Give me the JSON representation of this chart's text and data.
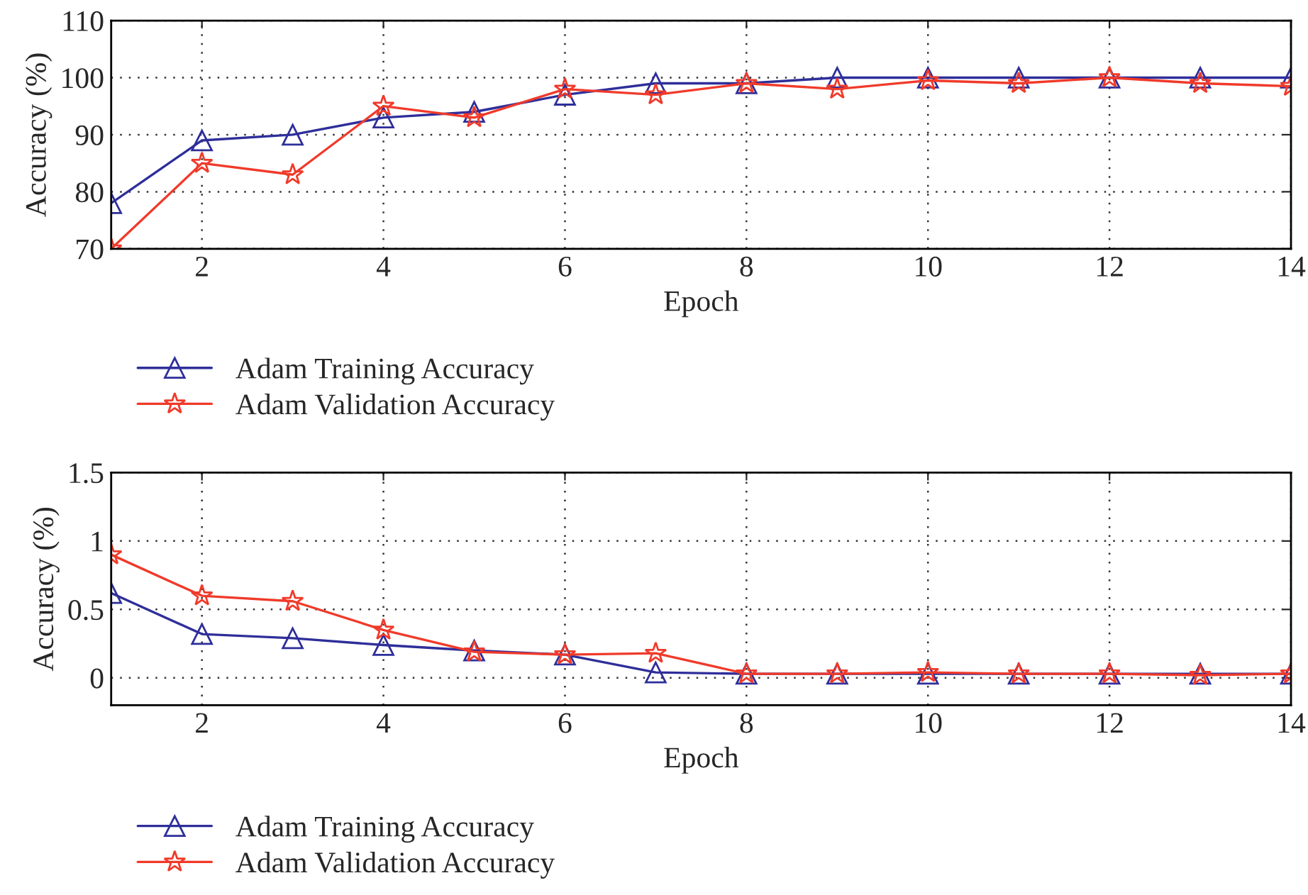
{
  "chart_data": [
    {
      "type": "line",
      "xlabel": "Epoch",
      "ylabel": "Accuracy (%)",
      "x": [
        1,
        2,
        3,
        4,
        5,
        6,
        7,
        8,
        9,
        10,
        11,
        12,
        13,
        14
      ],
      "series": [
        {
          "name": "Adam Training Accuracy",
          "color": "#2e2e9a",
          "marker": "triangle",
          "values": [
            78,
            89,
            90,
            93,
            94,
            97,
            99,
            99,
            100,
            100,
            100,
            100,
            100,
            100
          ]
        },
        {
          "name": "Adam Validation Accuracy",
          "color": "#f03a2a",
          "marker": "star",
          "values": [
            70,
            85,
            83,
            95,
            93,
            98,
            97,
            99,
            98,
            99.5,
            99,
            100,
            99,
            98.5
          ]
        }
      ],
      "xlim": [
        1,
        14
      ],
      "xticks": [
        2,
        4,
        6,
        8,
        10,
        12,
        14
      ],
      "ylim": [
        70,
        110
      ],
      "yticks": [
        70,
        80,
        90,
        100,
        110
      ],
      "grid": true,
      "legend": "bottom left",
      "line_style": "solid"
    },
    {
      "type": "line",
      "xlabel": "Epoch",
      "ylabel": "Accuracy (%)",
      "x": [
        1,
        2,
        3,
        4,
        5,
        6,
        7,
        8,
        9,
        10,
        11,
        12,
        13,
        14
      ],
      "series": [
        {
          "name": "Adam Training Accuracy",
          "color": "#2e2e9a",
          "marker": "triangle",
          "values": [
            0.62,
            0.32,
            0.29,
            0.24,
            0.2,
            0.17,
            0.04,
            0.03,
            0.03,
            0.03,
            0.03,
            0.03,
            0.03,
            0.03
          ]
        },
        {
          "name": "Adam Validation Accuracy",
          "color": "#f03a2a",
          "marker": "star",
          "values": [
            0.9,
            0.6,
            0.56,
            0.35,
            0.19,
            0.17,
            0.18,
            0.03,
            0.03,
            0.04,
            0.03,
            0.03,
            0.02,
            0.03
          ]
        }
      ],
      "xlim": [
        1,
        14
      ],
      "xticks": [
        2,
        4,
        6,
        8,
        10,
        12,
        14
      ],
      "ylim": [
        -0.2,
        1.5
      ],
      "yticks": [
        0,
        0.5,
        1,
        1.5
      ],
      "grid": true,
      "legend": "bottom left",
      "line_style": "solid"
    }
  ]
}
